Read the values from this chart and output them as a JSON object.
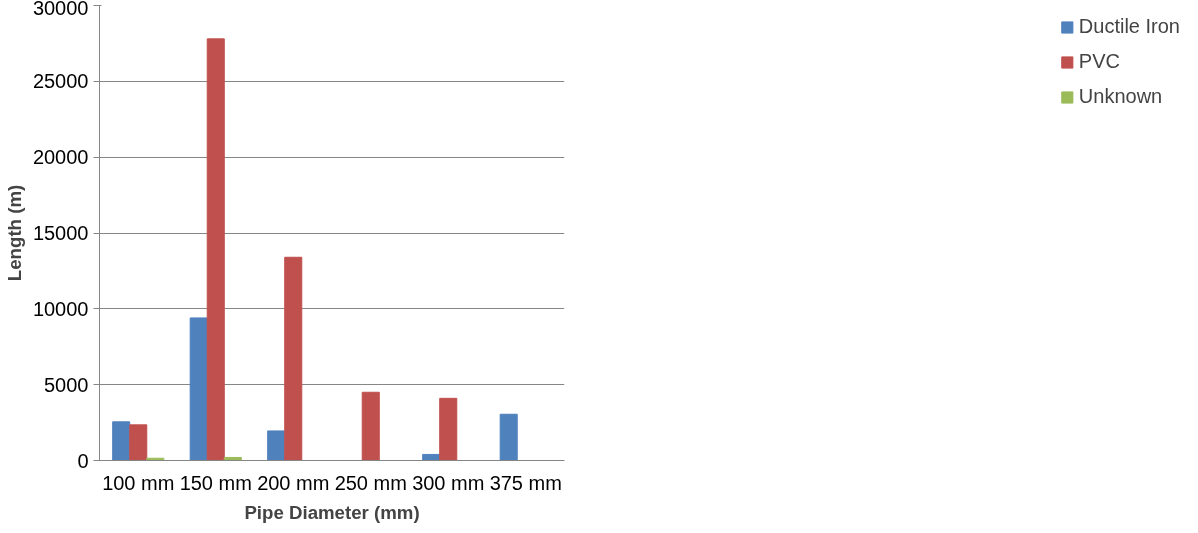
{
  "chart_data": {
    "type": "bar",
    "xlabel": "Pipe Diameter (mm)",
    "ylabel": "Length (m)",
    "categories": [
      "100 mm",
      "150 mm",
      "200 mm",
      "250 mm",
      "300 mm",
      "375 mm"
    ],
    "series": [
      {
        "name": "Ductile Iron",
        "color": "#4f81bd",
        "values": [
          2550,
          9400,
          1950,
          0,
          400,
          3050
        ]
      },
      {
        "name": "PVC",
        "color": "#c0504d",
        "values": [
          2350,
          27800,
          13400,
          4500,
          4100,
          0
        ]
      },
      {
        "name": "Unknown",
        "color": "#9bbb59",
        "values": [
          150,
          200,
          0,
          0,
          0,
          0
        ]
      }
    ],
    "ylim": [
      0,
      30000
    ],
    "yticks": [
      0,
      5000,
      10000,
      15000,
      20000,
      25000,
      30000
    ],
    "grid": "y",
    "legend": "right"
  }
}
